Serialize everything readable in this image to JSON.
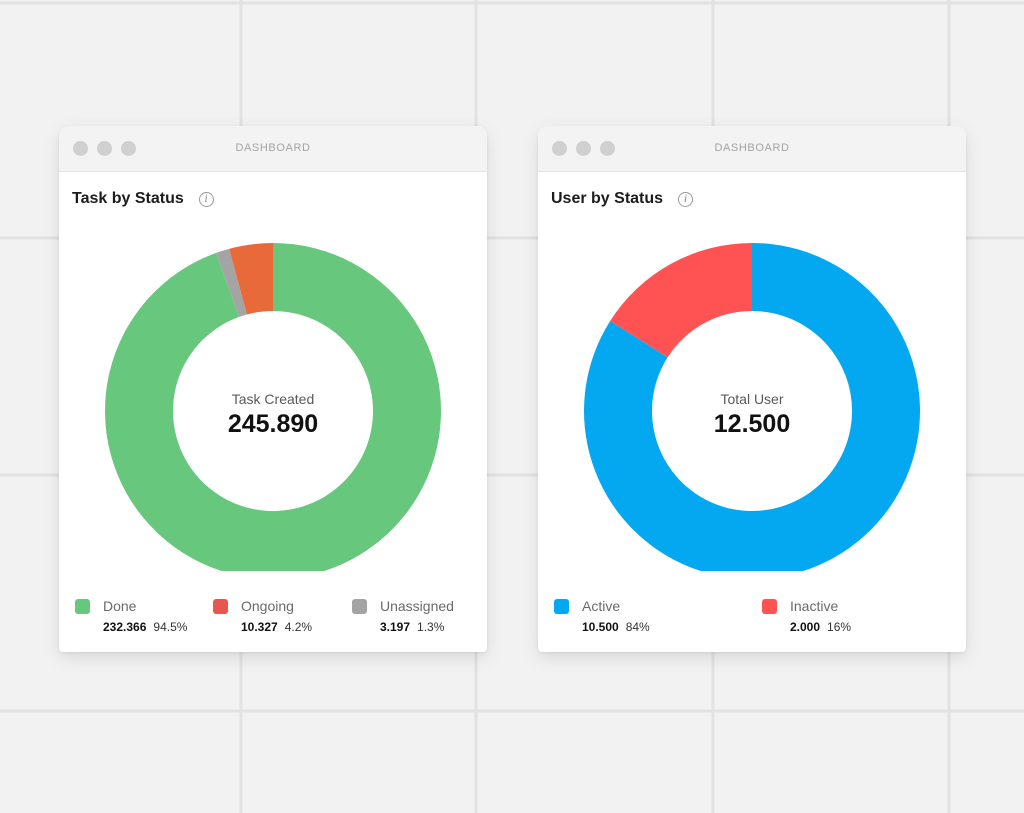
{
  "windows": [
    {
      "titlebar": "DASHBOARD",
      "title": "Task by Status",
      "center_label": "Task Created",
      "center_value": "245.890",
      "legend": [
        {
          "name": "Done",
          "count": "232.366",
          "percent": "94.5%"
        },
        {
          "name": "Ongoing",
          "count": "10.327",
          "percent": "4.2%"
        },
        {
          "name": "Unassigned",
          "count": "3.197",
          "percent": "1.3%"
        }
      ]
    },
    {
      "titlebar": "DASHBOARD",
      "title": "User by Status",
      "center_label": "Total User",
      "center_value": "12.500",
      "legend": [
        {
          "name": "Active",
          "count": "10.500",
          "percent": "84%"
        },
        {
          "name": "Inactive",
          "count": "2.000",
          "percent": "16%"
        }
      ]
    }
  ],
  "chart_data": [
    {
      "type": "pie",
      "variant": "donut",
      "title": "Task by Status",
      "total": 245890,
      "series": [
        {
          "name": "Done",
          "value": 232366,
          "percent": 94.5,
          "color": "#67c77d"
        },
        {
          "name": "Unassigned",
          "value": 3197,
          "percent": 1.3,
          "color": "#a4a4a4"
        },
        {
          "name": "Ongoing",
          "value": 10327,
          "percent": 4.2,
          "color": "#e8693a"
        }
      ],
      "legend_colors": {
        "Done": "#67c77d",
        "Ongoing": "#e8574d",
        "Unassigned": "#a4a4a4"
      },
      "legend": "bottom"
    },
    {
      "type": "pie",
      "variant": "donut",
      "title": "User by Status",
      "total": 12500,
      "series": [
        {
          "name": "Active",
          "value": 10500,
          "percent": 84,
          "color": "#04a8f0"
        },
        {
          "name": "Inactive",
          "value": 2000,
          "percent": 16,
          "color": "#ff5252"
        }
      ],
      "legend_colors": {
        "Active": "#04a8f0",
        "Inactive": "#ff5252"
      },
      "legend": "bottom"
    }
  ]
}
